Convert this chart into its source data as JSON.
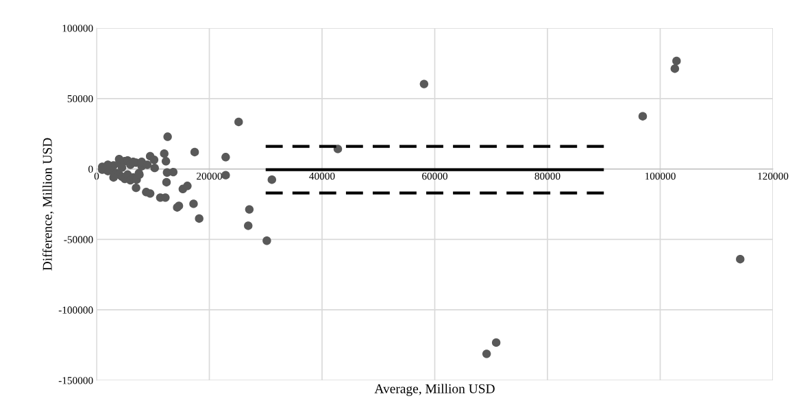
{
  "chart_data": {
    "type": "scatter",
    "xlabel": "Average, Million USD",
    "ylabel": "Difference, Million USD",
    "xlim": [
      0,
      120000
    ],
    "xticks": [
      0,
      20000,
      40000,
      60000,
      80000,
      100000,
      120000
    ],
    "ylim": [
      -150000,
      100000
    ],
    "yticks": [
      -150000,
      -100000,
      -50000,
      0,
      50000,
      100000
    ],
    "grid": true,
    "legend": false,
    "series": [
      {
        "color": "#595959",
        "marker": "circle",
        "x": [
          1000,
          2000,
          3000,
          3000,
          3500,
          4000,
          4000,
          4500,
          5000,
          5000,
          5500,
          5500,
          6000,
          6000,
          6500,
          7000,
          7500,
          8000,
          8000,
          9000,
          4000,
          2000,
          1000,
          3000,
          6500,
          4500,
          7000,
          7100,
          7600,
          8800,
          9500,
          9500,
          10200,
          10300,
          11300,
          12000,
          12200,
          12300,
          12400,
          12500,
          12600,
          13600,
          14300,
          14600,
          15300,
          16100,
          17200,
          17400,
          18200,
          22900,
          22900,
          25200,
          26900,
          27100,
          30200,
          31100,
          42800,
          58100,
          69200,
          70900,
          96900,
          102600,
          102900,
          114200
        ],
        "values": [
          -500,
          -1500,
          -2500,
          2500,
          -3000,
          4000,
          -4000,
          -5500,
          5500,
          -7000,
          6000,
          -4000,
          -8000,
          3000,
          -6000,
          4500,
          -3000,
          2000,
          5000,
          3000,
          7000,
          3000,
          1500,
          -6000,
          5000,
          1000,
          -13400,
          -7600,
          -4000,
          -16400,
          -17400,
          9100,
          6500,
          700,
          -20300,
          10900,
          -20300,
          5500,
          -9400,
          -2500,
          22900,
          -2200,
          -27300,
          -26200,
          -14200,
          -12000,
          -24700,
          12000,
          -35200,
          8400,
          -4400,
          33400,
          -40300,
          -28700,
          -50900,
          -7600,
          14200,
          60300,
          -131200,
          -123200,
          37400,
          71200,
          76700,
          -64000
        ]
      },
      {
        "type": "line",
        "color": "#000000",
        "line_style": "dashed",
        "x": [
          30000,
          90000
        ],
        "values": [
          16000,
          16000
        ]
      },
      {
        "type": "line",
        "color": "#000000",
        "line_style": "solid",
        "x": [
          30000,
          90000
        ],
        "values": [
          -500,
          -500
        ]
      },
      {
        "type": "line",
        "color": "#000000",
        "line_style": "dashed",
        "x": [
          30000,
          90000
        ],
        "values": [
          -17000,
          -17000
        ]
      }
    ]
  }
}
